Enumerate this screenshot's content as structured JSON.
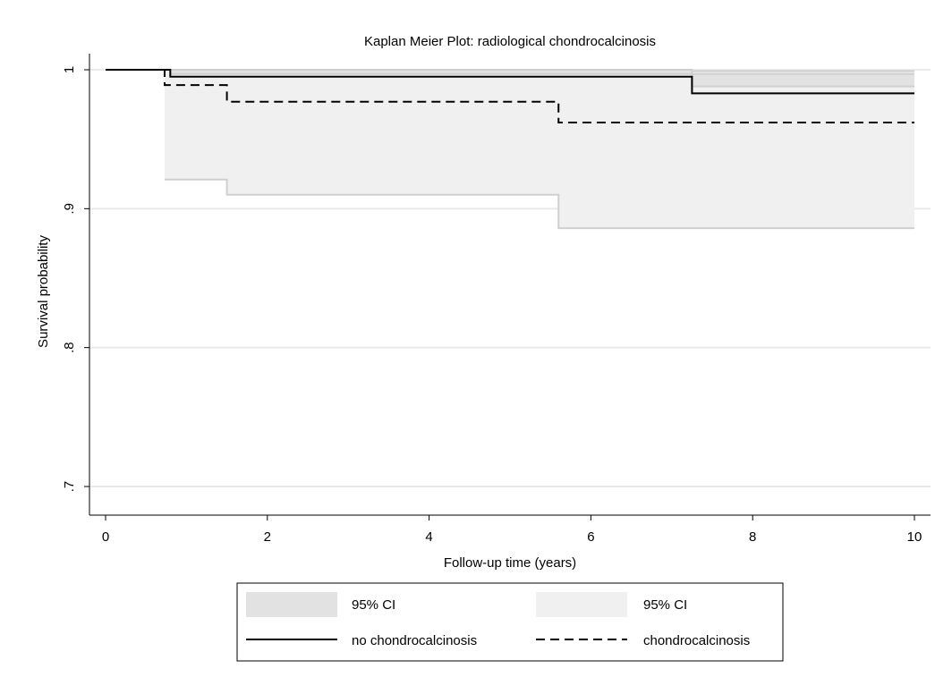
{
  "chart_data": {
    "type": "line",
    "chart_kind": "kaplan-meier step plot",
    "title": "Kaplan Meier Plot: radiological chondrocalcinosis",
    "xlabel": "Follow-up time (years)",
    "ylabel": "Survival probability",
    "xlim": [
      0,
      10
    ],
    "ylim": [
      0.68,
      1.0
    ],
    "x_ticks": [
      0,
      2,
      4,
      6,
      8,
      10
    ],
    "x_tick_labels": [
      "0",
      "2",
      "4",
      "6",
      "8",
      "10"
    ],
    "y_ticks": [
      0.7,
      0.8,
      0.9,
      1.0
    ],
    "y_tick_labels": [
      ".7",
      ".8",
      ".9",
      "1"
    ],
    "grid": "horizontal",
    "legend_placement": "bottom",
    "colors": {
      "ci_no_chondro": "#e2e2e2",
      "ci_chondro": "#f0f0f0",
      "ci_border": "#cfcfcf",
      "line": "#000000",
      "grid": "#eaeaea"
    },
    "series": [
      {
        "name": "no chondrocalcinosis",
        "style": "solid",
        "x": [
          0,
          0.8,
          7.25,
          10
        ],
        "y": [
          1.0,
          0.995,
          0.983,
          0.983
        ],
        "ci_x": [
          0.8,
          7.25,
          10
        ],
        "ci_upper": [
          1.0,
          0.997,
          0.997
        ],
        "ci_lower": [
          0.997,
          0.988,
          0.988
        ]
      },
      {
        "name": "chondrocalcinosis",
        "style": "dashed",
        "x": [
          0,
          0.73,
          1.5,
          5.6,
          10
        ],
        "y": [
          1.0,
          0.989,
          0.977,
          0.962,
          0.962
        ],
        "ci_x": [
          0.73,
          1.5,
          5.6,
          10
        ],
        "ci_upper": [
          1.0,
          1.0,
          0.999,
          0.999
        ],
        "ci_lower": [
          0.921,
          0.91,
          0.886,
          0.886
        ]
      }
    ],
    "legend": [
      {
        "label": "95% CI",
        "kind": "ci",
        "series": 0
      },
      {
        "label": "95% CI",
        "kind": "ci",
        "series": 1
      },
      {
        "label": "no chondrocalcinosis",
        "kind": "solid-line",
        "series": 0
      },
      {
        "label": "chondrocalcinosis",
        "kind": "dashed-line",
        "series": 1
      }
    ]
  }
}
